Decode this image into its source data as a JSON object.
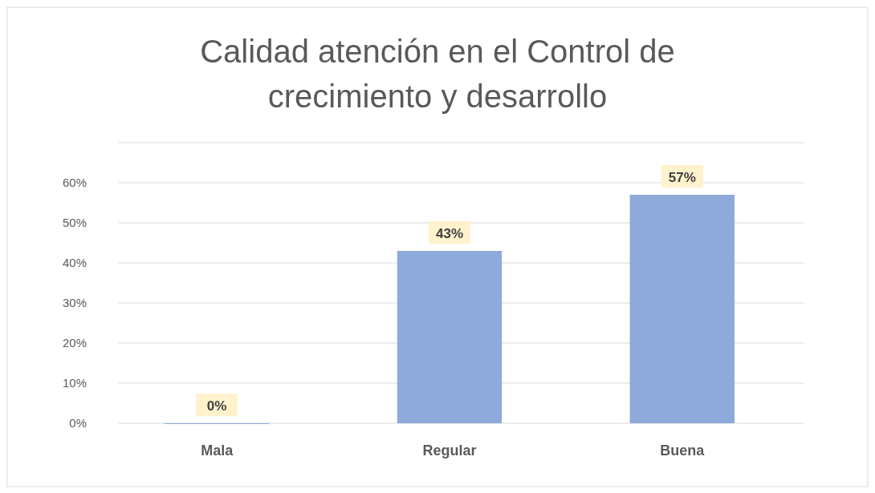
{
  "chart_data": {
    "type": "bar",
    "title": "Calidad atención en el Control de crecimiento y desarrollo",
    "categories": [
      "Mala",
      "Regular",
      "Buena"
    ],
    "values": [
      0,
      43,
      57
    ],
    "value_labels": [
      "0%",
      "43%",
      "57%"
    ],
    "color": "#8eaadb",
    "ylim": [
      0,
      70
    ],
    "yticks": [
      {
        "value": 0,
        "label": "0%"
      },
      {
        "value": 10,
        "label": "10%"
      },
      {
        "value": 20,
        "label": "20%"
      },
      {
        "value": 30,
        "label": "30%"
      },
      {
        "value": 40,
        "label": "40%"
      },
      {
        "value": 50,
        "label": "50%"
      },
      {
        "value": 60,
        "label": "60%"
      },
      {
        "value": 70,
        "label": null
      }
    ],
    "grid": "y"
  }
}
